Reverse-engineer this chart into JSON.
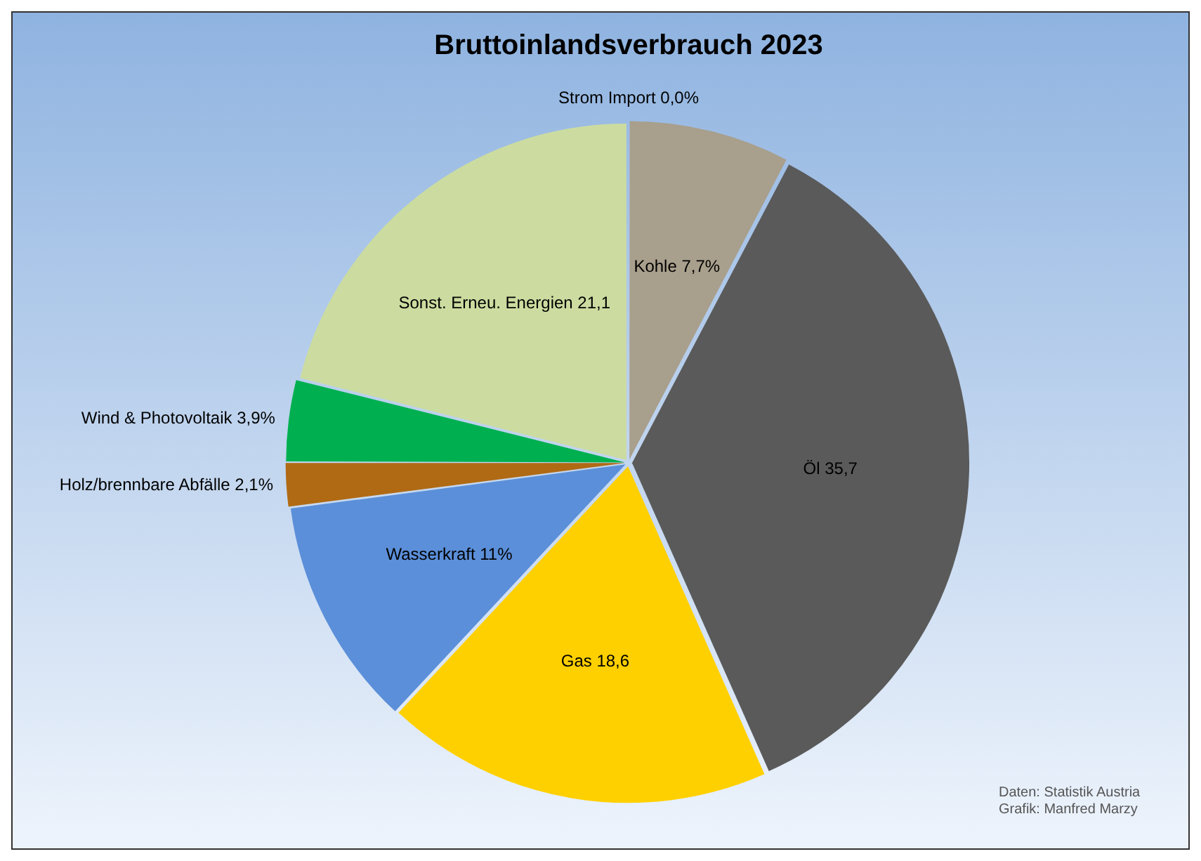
{
  "chart_data": {
    "type": "pie",
    "title": "Bruttoinlandsverbrauch 2023",
    "categories": [
      "Strom Import",
      "Kohle",
      "Öl",
      "Gas",
      "Wasserkraft",
      "Holz/brennbare Abfälle",
      "Wind & Photovoltaik",
      "Sonst. Erneu. Energien"
    ],
    "values": [
      0.0,
      7.7,
      35.7,
      18.6,
      11,
      2.1,
      3.9,
      21.1
    ],
    "value_labels": [
      "0,0%",
      "7,7%",
      "35,7",
      "18,6",
      "11%",
      "2,1%",
      "3,9%",
      "21,1"
    ],
    "colors": [
      "#c6d9f0",
      "#a89f8c",
      "#5a5a5a",
      "#ffd000",
      "#5b8fd9",
      "#b06a14",
      "#00b050",
      "#ccdca0"
    ],
    "annotations": [
      "Daten: Statistik Austria",
      "Grafik: Manfred Marzy"
    ],
    "legend": false
  }
}
